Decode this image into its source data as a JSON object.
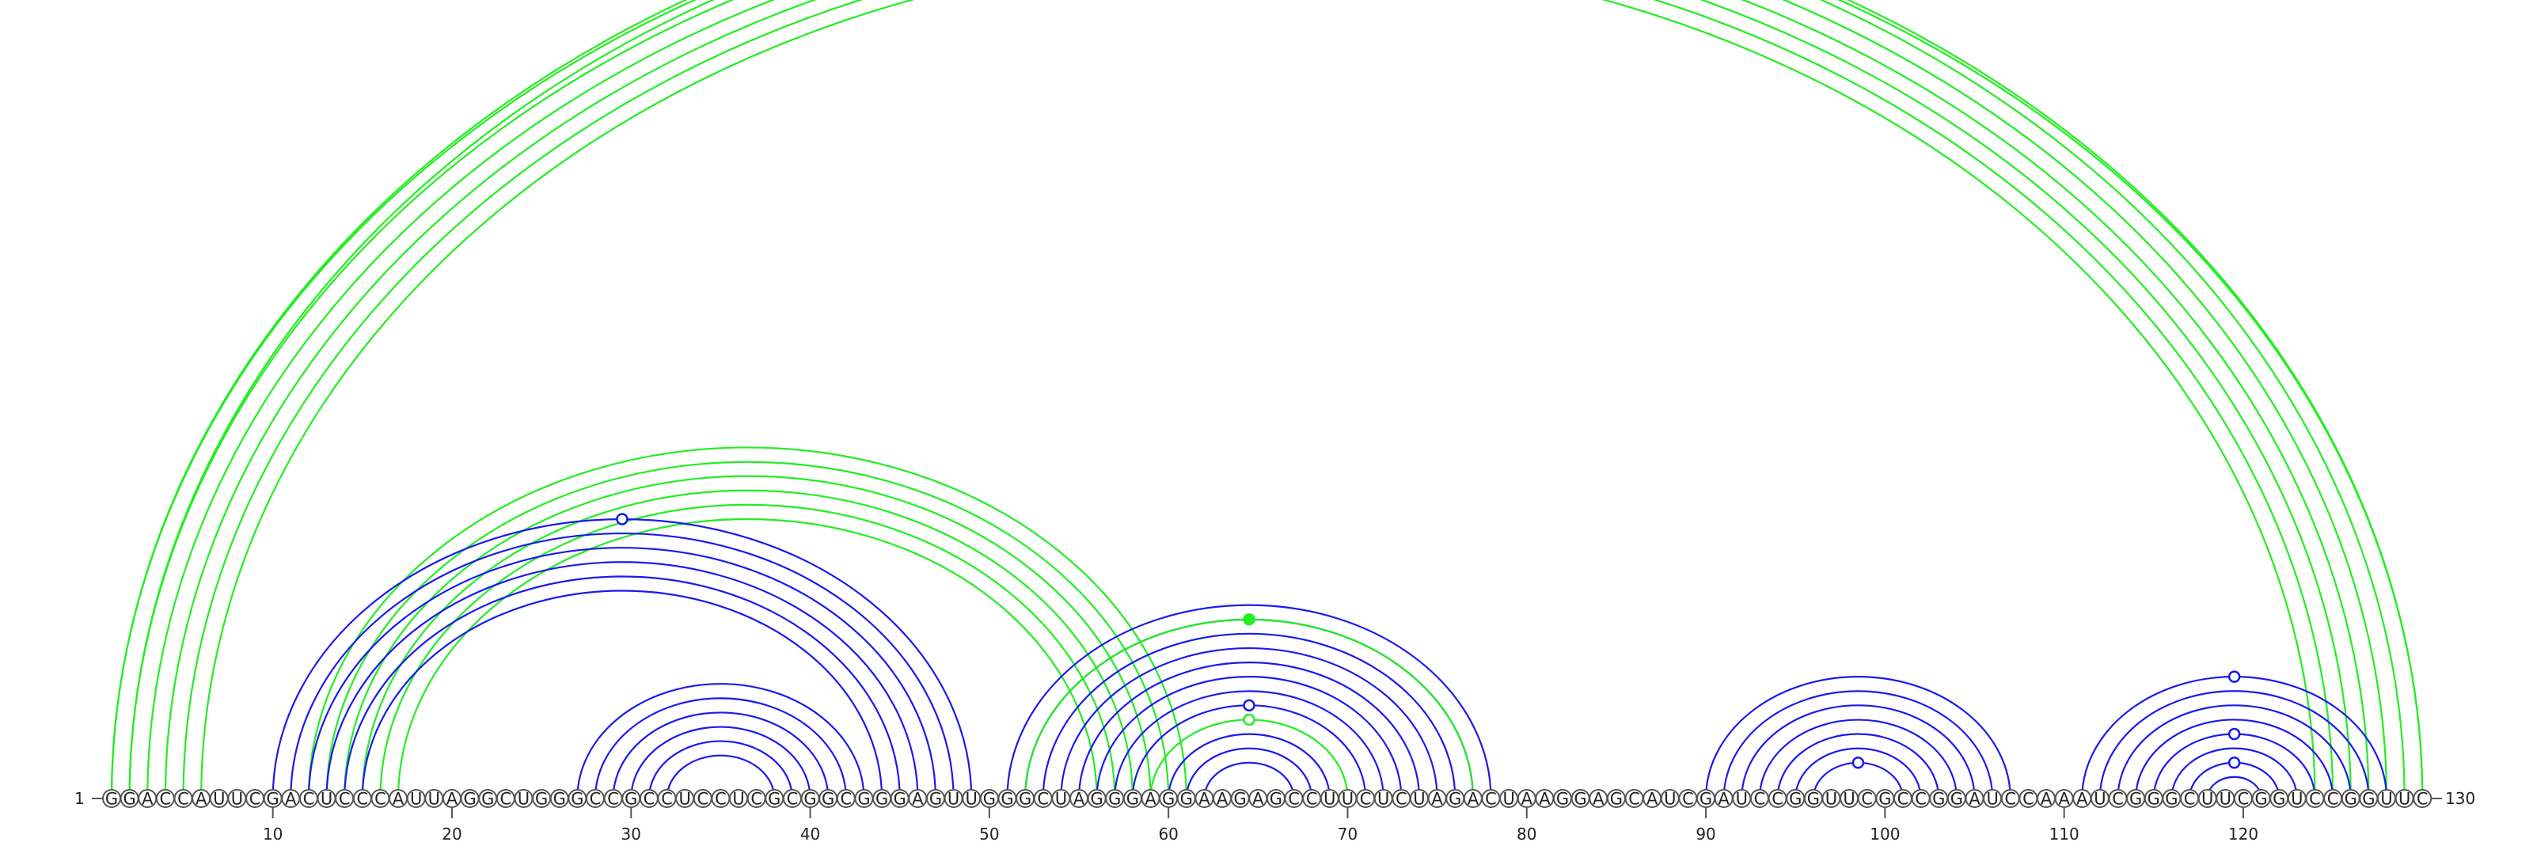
{
  "sequence": "GGACCAUUCGACUCCCAUUAGGCUGGGCCGCCUCCUCGCGGCGGGAGUUGGGCUAGGGAGGAAGAGCCUUCUCUAGACUAAGGAGCAUCGAUCCGGUUCGCCGGAUCCAAAUCGGGCUUCGGUCCGGUUC",
  "start_label": "1",
  "end_label": "130",
  "ticks": [
    10,
    20,
    30,
    40,
    50,
    60,
    70,
    80,
    90,
    100,
    110,
    120
  ],
  "colors": {
    "blue": "#1a1aee",
    "green": "#22ee22"
  },
  "arcs": [
    {
      "i": 1,
      "j": 129,
      "color": "green"
    },
    {
      "i": 2,
      "j": 128,
      "color": "green"
    },
    {
      "i": 3,
      "j": 127,
      "color": "green"
    },
    {
      "i": 4,
      "j": 126,
      "color": "green"
    },
    {
      "i": 5,
      "j": 125,
      "color": "green"
    },
    {
      "i": 6,
      "j": 124,
      "color": "green"
    },
    {
      "i": 1,
      "j": 130,
      "color": "green"
    },
    {
      "i": 2,
      "j": 130,
      "color": "green"
    },
    {
      "i": 12,
      "j": 61,
      "color": "green"
    },
    {
      "i": 13,
      "j": 60,
      "color": "green"
    },
    {
      "i": 14,
      "j": 59,
      "color": "green"
    },
    {
      "i": 15,
      "j": 58,
      "color": "green"
    },
    {
      "i": 16,
      "j": 57,
      "color": "green"
    },
    {
      "i": 17,
      "j": 56,
      "color": "green"
    },
    {
      "i": 10,
      "j": 49,
      "color": "blue"
    },
    {
      "i": 11,
      "j": 48,
      "color": "blue"
    },
    {
      "i": 12,
      "j": 47,
      "color": "blue"
    },
    {
      "i": 13,
      "j": 46,
      "color": "blue"
    },
    {
      "i": 14,
      "j": 45,
      "color": "blue"
    },
    {
      "i": 15,
      "j": 44,
      "color": "blue"
    },
    {
      "i": 27,
      "j": 43,
      "color": "blue"
    },
    {
      "i": 28,
      "j": 42,
      "color": "blue"
    },
    {
      "i": 29,
      "j": 41,
      "color": "blue"
    },
    {
      "i": 30,
      "j": 40,
      "color": "blue"
    },
    {
      "i": 31,
      "j": 39,
      "color": "blue"
    },
    {
      "i": 32,
      "j": 38,
      "color": "blue"
    },
    {
      "i": 51,
      "j": 78,
      "color": "blue"
    },
    {
      "i": 52,
      "j": 77,
      "color": "blue"
    },
    {
      "i": 53,
      "j": 76,
      "color": "blue"
    },
    {
      "i": 54,
      "j": 75,
      "color": "blue"
    },
    {
      "i": 55,
      "j": 74,
      "color": "blue"
    },
    {
      "i": 56,
      "j": 73,
      "color": "blue"
    },
    {
      "i": 57,
      "j": 72,
      "color": "blue"
    },
    {
      "i": 58,
      "j": 71,
      "color": "blue"
    },
    {
      "i": 60,
      "j": 69,
      "color": "blue"
    },
    {
      "i": 61,
      "j": 68,
      "color": "blue"
    },
    {
      "i": 62,
      "j": 67,
      "color": "blue"
    },
    {
      "i": 52,
      "j": 77,
      "color": "green"
    },
    {
      "i": 59,
      "j": 70,
      "color": "green"
    },
    {
      "i": 90,
      "j": 107,
      "color": "blue"
    },
    {
      "i": 91,
      "j": 106,
      "color": "blue"
    },
    {
      "i": 92,
      "j": 105,
      "color": "blue"
    },
    {
      "i": 93,
      "j": 104,
      "color": "blue"
    },
    {
      "i": 94,
      "j": 103,
      "color": "blue"
    },
    {
      "i": 95,
      "j": 102,
      "color": "blue"
    },
    {
      "i": 96,
      "j": 101,
      "color": "blue"
    },
    {
      "i": 111,
      "j": 128,
      "color": "blue"
    },
    {
      "i": 112,
      "j": 127,
      "color": "blue"
    },
    {
      "i": 113,
      "j": 126,
      "color": "blue"
    },
    {
      "i": 114,
      "j": 125,
      "color": "blue"
    },
    {
      "i": 115,
      "j": 124,
      "color": "blue"
    },
    {
      "i": 116,
      "j": 123,
      "color": "blue"
    },
    {
      "i": 117,
      "j": 122,
      "color": "blue"
    },
    {
      "i": 118,
      "j": 121,
      "color": "blue"
    }
  ],
  "markers": [
    {
      "i": 1,
      "j": 130,
      "color": "green",
      "filled": false
    },
    {
      "i": 10,
      "j": 49,
      "color": "blue",
      "filled": false
    },
    {
      "i": 52,
      "j": 77,
      "color": "green",
      "filled": true
    },
    {
      "i": 59,
      "j": 70,
      "color": "green",
      "filled": false
    },
    {
      "i": 58,
      "j": 71,
      "color": "blue",
      "filled": false
    },
    {
      "i": 96,
      "j": 101,
      "color": "blue",
      "filled": false
    },
    {
      "i": 111,
      "j": 128,
      "color": "blue",
      "filled": false
    },
    {
      "i": 115,
      "j": 124,
      "color": "blue",
      "filled": false
    },
    {
      "i": 117,
      "j": 122,
      "color": "blue",
      "filled": false
    }
  ]
}
